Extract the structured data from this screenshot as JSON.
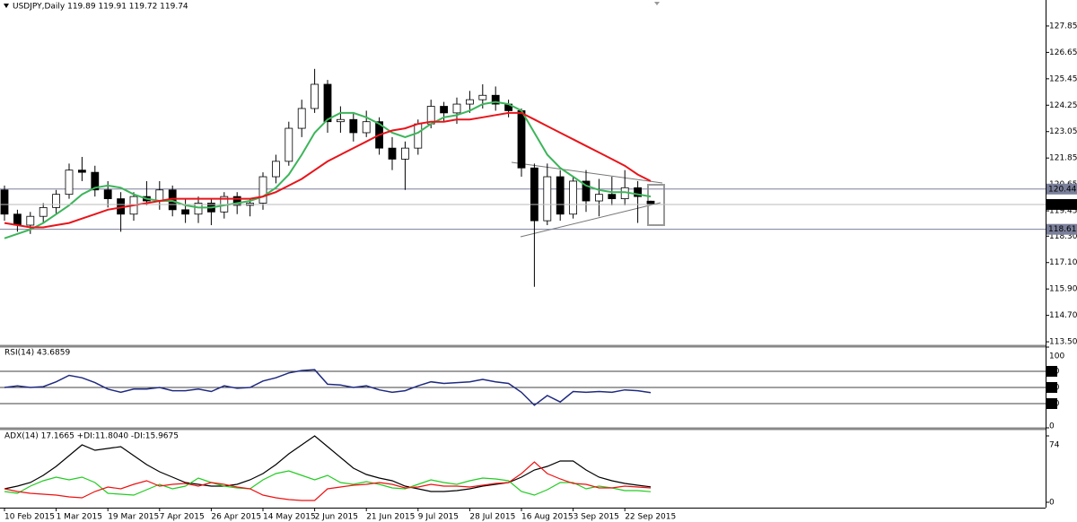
{
  "chart_data": [
    {
      "type": "candlestick",
      "header": "USDJPY,Daily  119.89 119.91 119.72 119.74",
      "categories": [
        "10 Feb 2015",
        null,
        null,
        null,
        "1 Mar 2015",
        null,
        null,
        null,
        "19 Mar 2015",
        null,
        null,
        null,
        "7 Apr 2015",
        null,
        null,
        null,
        "26 Apr 2015",
        null,
        null,
        null,
        "14 May 2015",
        null,
        null,
        null,
        "2 Jun 2015",
        null,
        null,
        null,
        "21 Jun 2015",
        null,
        null,
        null,
        "9 Jul 2015",
        null,
        null,
        null,
        "28 Jul 2015",
        null,
        null,
        null,
        "16 Aug 2015",
        null,
        null,
        null,
        "3 Sep 2015",
        null,
        null,
        null,
        "22 Sep 2015",
        null,
        null
      ],
      "open": [
        120.4,
        119.3,
        118.8,
        119.2,
        119.6,
        120.2,
        121.3,
        121.2,
        120.4,
        120.0,
        119.3,
        120.1,
        119.9,
        120.4,
        119.5,
        119.3,
        119.8,
        119.4,
        120.1,
        119.7,
        119.8,
        121.0,
        121.7,
        123.2,
        124.1,
        125.2,
        123.5,
        123.6,
        123.0,
        123.5,
        122.3,
        121.8,
        122.3,
        123.4,
        124.2,
        123.9,
        124.3,
        124.5,
        124.7,
        124.3,
        124.0,
        121.4,
        119.0,
        121.0,
        119.3,
        120.8,
        119.9,
        120.2,
        120.0,
        120.5,
        119.89
      ],
      "high": [
        120.6,
        119.5,
        119.4,
        119.8,
        120.4,
        121.6,
        121.9,
        121.5,
        120.8,
        120.3,
        120.3,
        120.8,
        120.8,
        120.6,
        120.0,
        120.1,
        120.0,
        120.3,
        120.3,
        120.0,
        121.2,
        122.0,
        123.5,
        124.5,
        125.9,
        125.4,
        124.2,
        123.9,
        124.0,
        123.7,
        122.8,
        122.6,
        123.6,
        124.5,
        124.4,
        124.6,
        124.9,
        125.2,
        125.1,
        124.5,
        124.1,
        121.6,
        121.6,
        121.3,
        121.0,
        121.3,
        120.9,
        121.0,
        121.3,
        120.8,
        119.91
      ],
      "low": [
        119.0,
        118.5,
        118.4,
        118.9,
        119.3,
        120.0,
        120.8,
        120.1,
        119.6,
        118.5,
        119.0,
        119.7,
        119.5,
        119.2,
        118.9,
        118.9,
        118.8,
        119.1,
        119.3,
        119.2,
        119.5,
        120.7,
        121.5,
        122.8,
        123.9,
        123.0,
        123.0,
        122.6,
        122.8,
        122.0,
        121.3,
        120.4,
        122.0,
        123.2,
        123.5,
        123.4,
        123.9,
        124.1,
        124.0,
        123.7,
        121.0,
        116.0,
        118.8,
        119.0,
        119.1,
        119.4,
        119.2,
        119.7,
        119.7,
        118.9,
        119.72
      ],
      "close": [
        119.3,
        118.8,
        119.2,
        119.6,
        120.2,
        121.3,
        121.2,
        120.4,
        120.0,
        119.3,
        120.1,
        119.9,
        120.4,
        119.5,
        119.3,
        119.8,
        119.4,
        120.1,
        119.7,
        119.8,
        121.0,
        121.7,
        123.2,
        124.1,
        125.2,
        123.5,
        123.6,
        123.0,
        123.5,
        122.3,
        121.8,
        122.3,
        123.4,
        124.2,
        123.9,
        124.3,
        124.5,
        124.7,
        124.3,
        124.0,
        121.4,
        119.0,
        121.0,
        119.3,
        120.8,
        119.9,
        120.2,
        120.0,
        120.5,
        120.1,
        119.74
      ],
      "overlays": [
        {
          "color": "#3cb55a",
          "values": [
            118.2,
            118.4,
            118.6,
            118.9,
            119.3,
            119.7,
            120.2,
            120.5,
            120.6,
            120.5,
            120.2,
            120.0,
            119.9,
            119.9,
            119.7,
            119.6,
            119.6,
            119.7,
            119.8,
            119.9,
            120.1,
            120.5,
            121.1,
            122.0,
            123.0,
            123.6,
            123.9,
            123.9,
            123.7,
            123.4,
            123.0,
            122.8,
            123.0,
            123.4,
            123.7,
            123.8,
            124.0,
            124.3,
            124.4,
            124.3,
            124.0,
            123.0,
            122.0,
            121.4,
            121.0,
            120.6,
            120.4,
            120.3,
            120.3,
            120.2,
            120.1
          ]
        },
        {
          "color": "#e8141a",
          "values": [
            118.9,
            118.8,
            118.7,
            118.7,
            118.8,
            118.9,
            119.1,
            119.3,
            119.5,
            119.6,
            119.7,
            119.8,
            119.9,
            120.0,
            120.0,
            120.0,
            120.0,
            120.0,
            120.0,
            120.0,
            120.1,
            120.3,
            120.6,
            120.9,
            121.3,
            121.7,
            122.0,
            122.3,
            122.6,
            122.9,
            123.1,
            123.2,
            123.4,
            123.5,
            123.5,
            123.6,
            123.6,
            123.7,
            123.8,
            123.9,
            123.9,
            123.6,
            123.3,
            123.0,
            122.7,
            122.4,
            122.1,
            121.8,
            121.5,
            121.1,
            120.8
          ]
        }
      ],
      "hlines": [
        120.44,
        118.61
      ],
      "ylim": [
        113.34,
        129.03
      ],
      "yticks": [
        {
          "value": 113.5,
          "label": "113.50"
        },
        {
          "value": 114.7,
          "label": "114.70"
        },
        {
          "value": 115.9,
          "label": "115.90"
        },
        {
          "value": 117.1,
          "label": "117.10"
        },
        {
          "value": 118.3,
          "label": "118.30"
        },
        119.45,
        120.65,
        121.85,
        123.05,
        124.25,
        125.45,
        126.65,
        127.85
      ]
    },
    {
      "type": "line",
      "header": "RSI(14) 43.6859",
      "series": [
        {
          "color": "#1f2a80",
          "values": [
            50,
            52,
            50,
            51,
            57,
            65,
            62,
            56,
            48,
            44,
            48,
            48,
            50,
            46,
            46,
            48,
            45,
            52,
            49,
            50,
            58,
            62,
            68,
            71,
            72,
            54,
            53,
            50,
            52,
            47,
            44,
            46,
            52,
            57,
            55,
            56,
            57,
            60,
            57,
            55,
            44,
            28,
            40,
            32,
            45,
            44,
            45,
            44,
            47,
            46,
            43.6859
          ]
        }
      ],
      "ylim": [
        0,
        100
      ],
      "yticks": [
        0,
        30,
        50,
        70,
        100
      ]
    },
    {
      "type": "line",
      "header": "ADX(14) 17.1665 +DI:11.8040 -DI:15.9675",
      "series": [
        {
          "color": "#000000",
          "values": [
            15,
            18,
            22,
            30,
            40,
            52,
            64,
            58,
            60,
            62,
            52,
            42,
            34,
            28,
            22,
            20,
            18,
            18,
            20,
            25,
            32,
            42,
            54,
            64,
            74,
            62,
            50,
            38,
            31,
            27,
            24,
            18,
            15,
            12,
            12,
            13,
            15,
            18,
            20,
            22,
            28,
            36,
            40,
            46,
            46,
            36,
            28,
            24,
            21,
            19,
            17.1665
          ]
        },
        {
          "color": "#22cc22",
          "values": [
            12,
            10,
            18,
            24,
            28,
            25,
            28,
            22,
            10,
            9,
            8,
            14,
            20,
            15,
            18,
            27,
            22,
            18,
            16,
            15,
            25,
            32,
            35,
            30,
            25,
            30,
            22,
            20,
            23,
            20,
            16,
            15,
            20,
            25,
            22,
            20,
            24,
            27,
            26,
            24,
            12,
            8,
            14,
            22,
            22,
            15,
            18,
            16,
            13,
            13,
            11.804
          ]
        },
        {
          "color": "#ee1111",
          "values": [
            15,
            12,
            10,
            9,
            8,
            6,
            5,
            12,
            17,
            15,
            20,
            24,
            18,
            20,
            21,
            18,
            22,
            20,
            17,
            15,
            8,
            5,
            3,
            2,
            2,
            15,
            17,
            19,
            20,
            22,
            20,
            16,
            17,
            20,
            18,
            18,
            17,
            19,
            21,
            22,
            32,
            45,
            32,
            26,
            21,
            20,
            16,
            16,
            18,
            17,
            15.9675
          ]
        }
      ],
      "ylim": [
        0,
        74
      ],
      "yticks": [
        0,
        74
      ]
    }
  ]
}
